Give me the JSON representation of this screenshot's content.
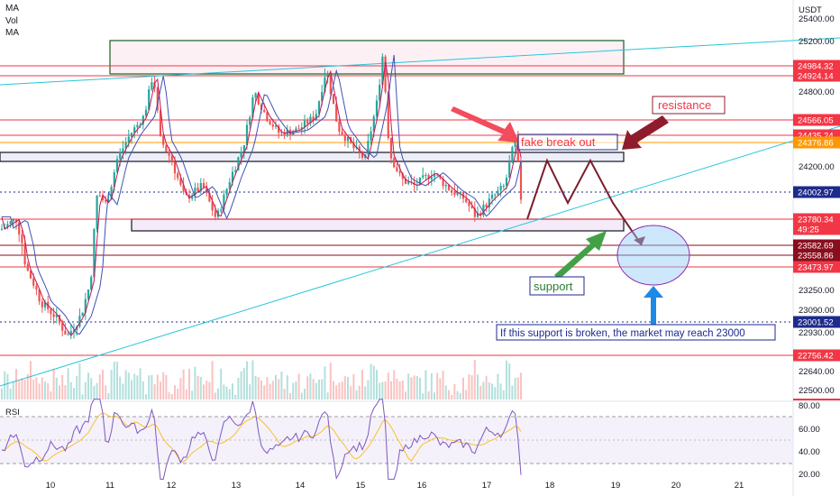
{
  "indicators": [
    "MA",
    "Vol",
    "MA"
  ],
  "currency": "USDT",
  "rsi_label": "RSI",
  "chart_data": {
    "type": "candlestick",
    "price_axis_ticks": [
      25400,
      25200,
      24800,
      24200,
      23250,
      23090,
      22930,
      22640,
      22500
    ],
    "rsi_axis_ticks": [
      80.0,
      60.0,
      40.0,
      20.0
    ],
    "x_ticks": [
      "10",
      "11",
      "12",
      "13",
      "14",
      "15",
      "16",
      "17",
      "18",
      "19",
      "20",
      "21"
    ],
    "price_labels": [
      {
        "value": "24984.32",
        "color": "#f23645"
      },
      {
        "value": "24924.14",
        "color": "#f23645"
      },
      {
        "value": "24566.05",
        "color": "#f23645"
      },
      {
        "value": "24435.24",
        "color": "#f23645"
      },
      {
        "value": "24376.86",
        "color": "#ff9800"
      },
      {
        "value": "24002.97",
        "color": "#1e2a8c"
      },
      {
        "value": "23780.34",
        "color": "#f23645"
      },
      {
        "value": "49:25",
        "color": "#f23645"
      },
      {
        "value": "23582.69",
        "color": "#880e1e"
      },
      {
        "value": "23558.86",
        "color": "#880e1e"
      },
      {
        "value": "23473.97",
        "color": "#f23645"
      },
      {
        "value": "23001.52",
        "color": "#1e2a8c"
      },
      {
        "value": "22756.42",
        "color": "#f23645"
      }
    ],
    "horizontal_levels": [
      24984.32,
      24924.14,
      24566.05,
      24435.24,
      24376.86,
      24002.97,
      23780.34,
      23582.69,
      23558.86,
      23473.97,
      23001.52,
      22756.42
    ],
    "annotations": {
      "resistance": "resistance",
      "fake_breakout": "fake break out",
      "support": "support",
      "note": "If this support is broken, the market may reach 23000"
    },
    "colors": {
      "bull": "#26a69a",
      "bear": "#ef5350",
      "ma_fast": "#c2185b",
      "ma_slow": "#3f51b5",
      "rsi": "#7e57c2",
      "trendline": "#26c6da"
    }
  }
}
